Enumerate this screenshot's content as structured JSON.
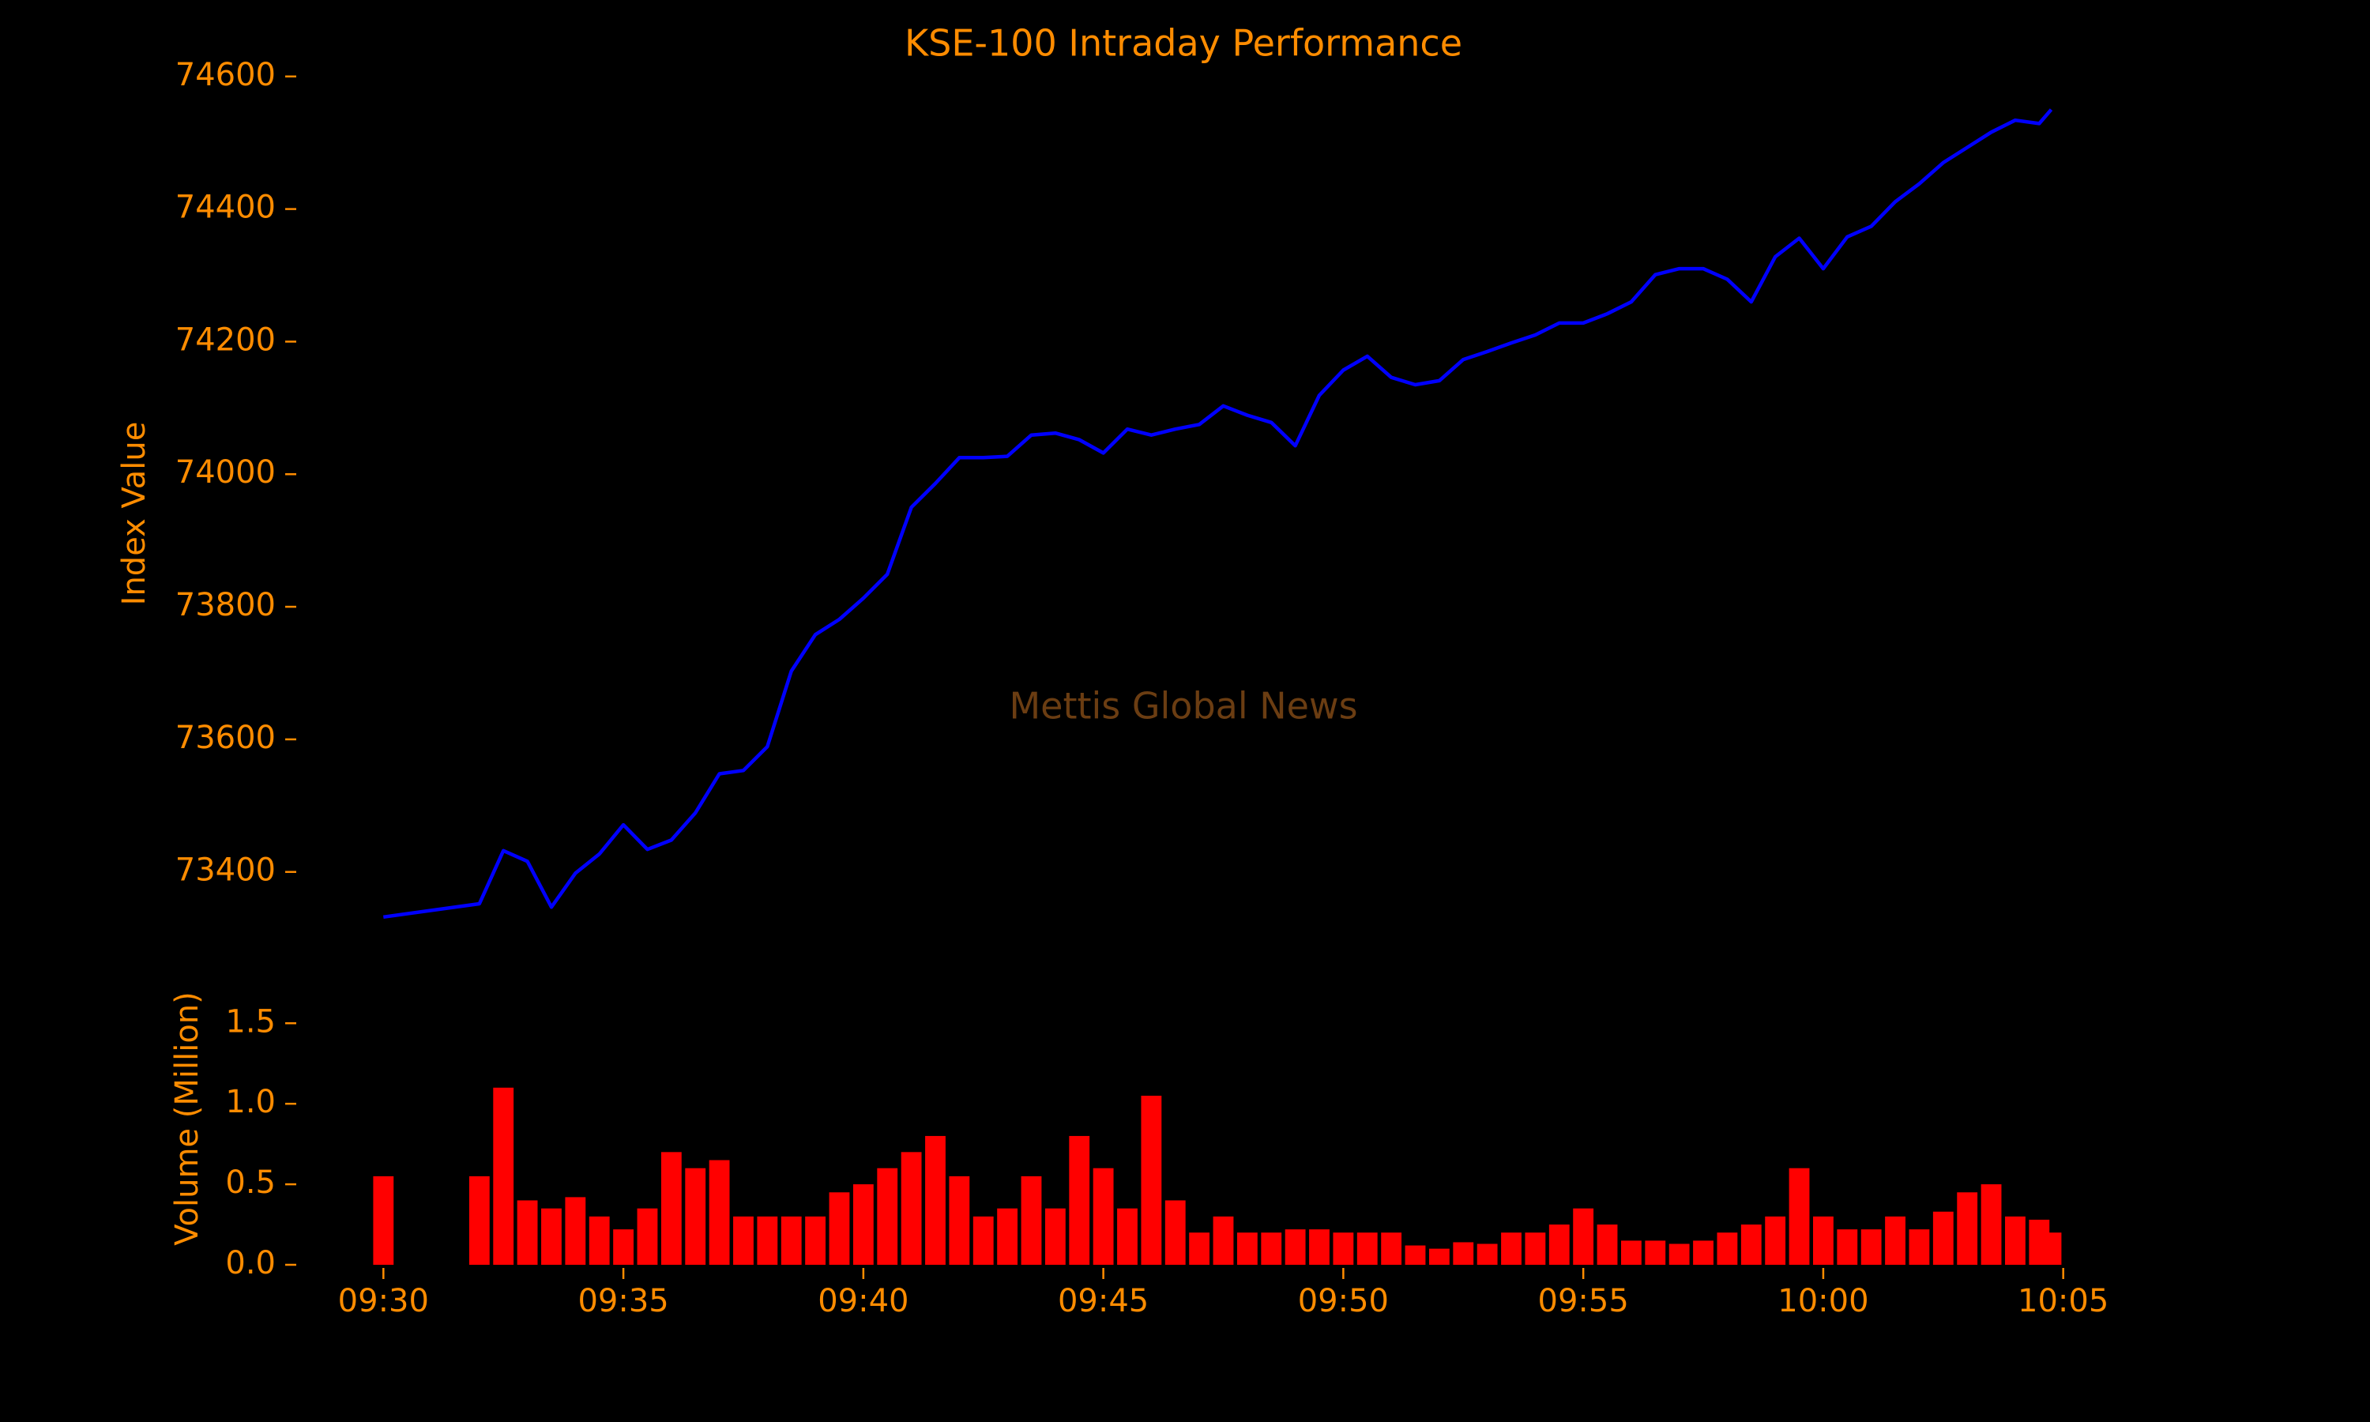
{
  "chart_data": [
    {
      "type": "line",
      "title": "KSE-100 Intraday Performance",
      "ylabel": "Index Value",
      "annotation": "Mettis Global News",
      "color": "#0000ff",
      "x": [
        "09:30:00",
        "09:32:00",
        "09:32:30",
        "09:33:00",
        "09:33:30",
        "09:34:00",
        "09:34:30",
        "09:35:00",
        "09:35:30",
        "09:36:00",
        "09:36:30",
        "09:37:00",
        "09:37:30",
        "09:38:00",
        "09:38:30",
        "09:39:00",
        "09:39:30",
        "09:40:00",
        "09:40:30",
        "09:41:00",
        "09:41:30",
        "09:42:00",
        "09:42:30",
        "09:43:00",
        "09:43:30",
        "09:44:00",
        "09:44:30",
        "09:45:00",
        "09:45:30",
        "09:46:00",
        "09:46:30",
        "09:47:00",
        "09:47:30",
        "09:48:00",
        "09:48:30",
        "09:49:00",
        "09:49:30",
        "09:50:00",
        "09:50:30",
        "09:51:00",
        "09:51:30",
        "09:52:00",
        "09:52:30",
        "09:53:00",
        "09:53:30",
        "09:54:00",
        "09:54:30",
        "09:55:00",
        "09:55:30",
        "09:56:00",
        "09:56:30",
        "09:57:00",
        "09:57:30",
        "09:58:00",
        "09:58:30",
        "09:59:00",
        "09:59:30",
        "10:00:00",
        "10:00:30",
        "10:01:00",
        "10:01:30",
        "10:02:00",
        "10:02:30",
        "10:03:00",
        "10:03:30",
        "10:04:00",
        "10:04:30",
        "10:04:45"
      ],
      "values": [
        73332,
        73352,
        73432,
        73416,
        73347,
        73398,
        73427,
        73471,
        73434,
        73448,
        73489,
        73548,
        73553,
        73589,
        73703,
        73758,
        73781,
        73813,
        73849,
        73950,
        73986,
        74025,
        74025,
        74027,
        74059,
        74062,
        74052,
        74032,
        74068,
        74059,
        74068,
        74075,
        74103,
        74089,
        74078,
        74043,
        74119,
        74157,
        74178,
        74146,
        74135,
        74141,
        74173,
        74185,
        74198,
        74210,
        74228,
        74228,
        74242,
        74260,
        74301,
        74310,
        74310,
        74294,
        74260,
        74328,
        74356,
        74310,
        74358,
        74374,
        74411,
        74438,
        74470,
        74493,
        74516,
        74534,
        74529,
        74550
      ],
      "xlim": [
        "09:28:15",
        "10:06:45"
      ],
      "ylim": [
        73290,
        74620
      ],
      "yticks": [
        73400,
        73600,
        73800,
        74000,
        74200,
        74400,
        74600
      ]
    },
    {
      "type": "bar",
      "ylabel": "Volume (Million)",
      "color": "#ff0000",
      "x": [
        "09:30:00",
        "09:32:00",
        "09:32:30",
        "09:33:00",
        "09:33:30",
        "09:34:00",
        "09:34:30",
        "09:35:00",
        "09:35:30",
        "09:36:00",
        "09:36:30",
        "09:37:00",
        "09:37:30",
        "09:38:00",
        "09:38:30",
        "09:39:00",
        "09:39:30",
        "09:40:00",
        "09:40:30",
        "09:41:00",
        "09:41:30",
        "09:42:00",
        "09:42:30",
        "09:43:00",
        "09:43:30",
        "09:44:00",
        "09:44:30",
        "09:45:00",
        "09:45:30",
        "09:46:00",
        "09:46:30",
        "09:47:00",
        "09:47:30",
        "09:48:00",
        "09:48:30",
        "09:49:00",
        "09:49:30",
        "09:50:00",
        "09:50:30",
        "09:51:00",
        "09:51:30",
        "09:52:00",
        "09:52:30",
        "09:53:00",
        "09:53:30",
        "09:54:00",
        "09:54:30",
        "09:55:00",
        "09:55:30",
        "09:56:00",
        "09:56:30",
        "09:57:00",
        "09:57:30",
        "09:58:00",
        "09:58:30",
        "09:59:00",
        "09:59:30",
        "10:00:00",
        "10:00:30",
        "10:01:00",
        "10:01:30",
        "10:02:00",
        "10:02:30",
        "10:03:00",
        "10:03:30",
        "10:04:00",
        "10:04:30",
        "10:04:45"
      ],
      "values": [
        0.55,
        0.55,
        1.1,
        0.4,
        0.35,
        0.42,
        0.3,
        0.22,
        0.35,
        0.7,
        0.6,
        0.65,
        0.3,
        0.3,
        0.3,
        0.3,
        0.45,
        0.5,
        0.6,
        0.7,
        0.8,
        0.55,
        0.3,
        0.35,
        0.55,
        0.35,
        0.8,
        0.6,
        0.35,
        1.05,
        0.4,
        0.2,
        0.3,
        0.2,
        0.2,
        0.22,
        0.22,
        0.2,
        0.2,
        0.2,
        0.12,
        0.1,
        0.14,
        0.13,
        0.2,
        0.2,
        0.25,
        0.35,
        0.25,
        0.15,
        0.15,
        0.13,
        0.15,
        0.2,
        0.25,
        0.3,
        0.6,
        0.3,
        0.22,
        0.22,
        0.3,
        0.22,
        0.33,
        0.45,
        0.5,
        0.3,
        0.28,
        0.2
      ],
      "xlim": [
        "09:28:15",
        "10:06:45"
      ],
      "ylim": [
        0,
        1.83
      ],
      "yticks": [
        {
          "value": 0,
          "label": "0.0"
        },
        0.5,
        {
          "value": 1,
          "label": "1.0"
        },
        1.5
      ],
      "xticks": [
        "09:30",
        "09:35",
        "09:40",
        "09:45",
        "09:50",
        "09:55",
        "10:00",
        "10:05"
      ]
    }
  ]
}
